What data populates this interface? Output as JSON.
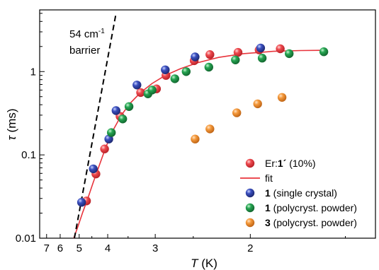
{
  "chart_data": {
    "type": "scatter",
    "title": "",
    "xlabel_symbol": "T",
    "xlabel_unit": " (K)",
    "ylabel_symbol": "τ",
    "ylabel_unit": " (ms)",
    "x_scale": "reciprocal",
    "y_scale": "log",
    "xlim": [
      7.65,
      1.39
    ],
    "ylim": [
      0.01,
      5.5
    ],
    "x_ticks": [
      7,
      6,
      5,
      4,
      3,
      2
    ],
    "x_tick_labels": [
      "7",
      "6",
      "5",
      "4",
      "3",
      "2"
    ],
    "y_ticks": [
      0.01,
      0.1,
      1
    ],
    "y_tick_labels": [
      "0.01",
      "0.1",
      "1"
    ],
    "grid": false,
    "legend_position": "bottom-right",
    "annotation": {
      "line1": "54 cm",
      "line1_sup": "-1",
      "line2": "barrier"
    },
    "series": [
      {
        "name": "Er:",
        "name_bold": "1´",
        "name_suffix": " (10%)",
        "color": "#e8343c",
        "marker": "circle",
        "points": [
          [
            4.7,
            0.028
          ],
          [
            4.36,
            0.059
          ],
          [
            4.09,
            0.118
          ],
          [
            3.68,
            0.29
          ],
          [
            3.25,
            0.56
          ],
          [
            2.98,
            0.62
          ],
          [
            2.84,
            0.9
          ],
          [
            2.49,
            1.35
          ],
          [
            2.33,
            1.6
          ],
          [
            2.09,
            1.7
          ],
          [
            1.94,
            1.82
          ],
          [
            1.81,
            1.88
          ]
        ]
      },
      {
        "name": "fit",
        "color": "#e8343c",
        "marker": "line",
        "points": [
          [
            5.25,
            0.01
          ],
          [
            5.05,
            0.014
          ],
          [
            4.85,
            0.0205
          ],
          [
            4.65,
            0.03
          ],
          [
            4.45,
            0.047
          ],
          [
            4.25,
            0.075
          ],
          [
            4.05,
            0.125
          ],
          [
            3.85,
            0.2
          ],
          [
            3.65,
            0.3
          ],
          [
            3.45,
            0.42
          ],
          [
            3.25,
            0.56
          ],
          [
            3.05,
            0.72
          ],
          [
            2.85,
            0.9
          ],
          [
            2.65,
            1.08
          ],
          [
            2.45,
            1.28
          ],
          [
            2.25,
            1.48
          ],
          [
            2.05,
            1.64
          ],
          [
            1.85,
            1.75
          ],
          [
            1.7,
            1.79
          ],
          [
            1.6,
            1.8
          ]
        ]
      },
      {
        "name": "",
        "name_bold": "1",
        "name_suffix": " (single crystal)",
        "color": "#2e41a0",
        "marker": "circle",
        "points": [
          [
            4.9,
            0.027
          ],
          [
            4.45,
            0.068
          ],
          [
            3.97,
            0.155
          ],
          [
            3.78,
            0.34
          ],
          [
            3.32,
            0.69
          ],
          [
            2.85,
            1.05
          ],
          [
            2.48,
            1.5
          ],
          [
            1.93,
            1.92
          ]
        ]
      },
      {
        "name": "",
        "name_bold": "1",
        "name_suffix": " (polycryst. powder)",
        "color": "#1e9445",
        "marker": "circle",
        "points": [
          [
            3.9,
            0.185
          ],
          [
            3.62,
            0.27
          ],
          [
            3.48,
            0.38
          ],
          [
            3.12,
            0.54
          ],
          [
            3.05,
            0.6
          ],
          [
            2.72,
            0.82
          ],
          [
            2.58,
            1.0
          ],
          [
            2.34,
            1.13
          ],
          [
            2.11,
            1.38
          ],
          [
            1.92,
            1.45
          ],
          [
            1.76,
            1.64
          ],
          [
            1.59,
            1.73
          ]
        ]
      },
      {
        "name": "",
        "name_bold": "3",
        "name_suffix": " (polycryst. powder)",
        "color": "#f08a2a",
        "marker": "circle",
        "points": [
          [
            2.48,
            0.155
          ],
          [
            2.33,
            0.205
          ],
          [
            2.1,
            0.32
          ],
          [
            1.95,
            0.41
          ],
          [
            1.8,
            0.49
          ]
        ]
      },
      {
        "name": "54 cm-1 barrier",
        "color": "#000000",
        "marker": "dashed-line",
        "points": [
          [
            5.22,
            0.01
          ],
          [
            3.78,
            5.0
          ]
        ]
      }
    ]
  }
}
